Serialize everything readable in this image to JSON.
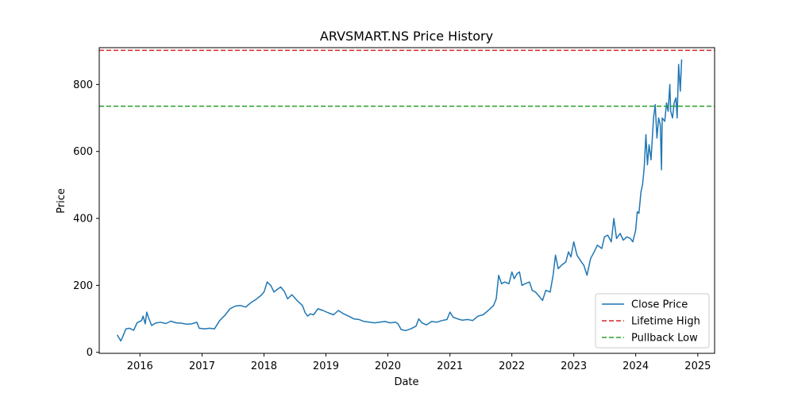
{
  "chart_data": {
    "type": "line",
    "title": "ARVSMART.NS Price History",
    "xlabel": "Date",
    "ylabel": "Price",
    "xlim": [
      "2015-05-06",
      "2025-04-10"
    ],
    "ylim": [
      -3,
      910
    ],
    "x_ticks": [
      "2016",
      "2017",
      "2018",
      "2019",
      "2020",
      "2021",
      "2022",
      "2023",
      "2024",
      "2025"
    ],
    "y_ticks": [
      0,
      200,
      400,
      600,
      800
    ],
    "grid": false,
    "legend_position": "lower-right",
    "series": [
      {
        "name": "Close Price",
        "color": "#1f77b4",
        "points": [
          [
            "2015-08-20",
            52
          ],
          [
            "2015-09-10",
            34
          ],
          [
            "2015-09-20",
            45
          ],
          [
            "2015-10-10",
            70
          ],
          [
            "2015-11-01",
            72
          ],
          [
            "2015-11-25",
            66
          ],
          [
            "2015-12-15",
            88
          ],
          [
            "2016-01-10",
            95
          ],
          [
            "2016-01-20",
            108
          ],
          [
            "2016-02-01",
            85
          ],
          [
            "2016-02-10",
            120
          ],
          [
            "2016-02-20",
            104
          ],
          [
            "2016-03-10",
            80
          ],
          [
            "2016-04-01",
            87
          ],
          [
            "2016-05-01",
            90
          ],
          [
            "2016-06-01",
            86
          ],
          [
            "2016-07-01",
            93
          ],
          [
            "2016-08-01",
            88
          ],
          [
            "2016-09-01",
            87
          ],
          [
            "2016-10-01",
            84
          ],
          [
            "2016-11-01",
            85
          ],
          [
            "2016-12-01",
            90
          ],
          [
            "2016-12-15",
            72
          ],
          [
            "2017-01-15",
            70
          ],
          [
            "2017-02-15",
            72
          ],
          [
            "2017-03-15",
            70
          ],
          [
            "2017-04-15",
            95
          ],
          [
            "2017-05-15",
            110
          ],
          [
            "2017-06-15",
            130
          ],
          [
            "2017-07-15",
            138
          ],
          [
            "2017-08-15",
            140
          ],
          [
            "2017-09-15",
            135
          ],
          [
            "2017-10-15",
            148
          ],
          [
            "2017-11-15",
            158
          ],
          [
            "2017-12-15",
            170
          ],
          [
            "2018-01-01",
            180
          ],
          [
            "2018-01-20",
            210
          ],
          [
            "2018-02-10",
            200
          ],
          [
            "2018-03-01",
            180
          ],
          [
            "2018-03-20",
            188
          ],
          [
            "2018-04-10",
            195
          ],
          [
            "2018-05-01",
            182
          ],
          [
            "2018-05-20",
            160
          ],
          [
            "2018-06-15",
            172
          ],
          [
            "2018-07-15",
            155
          ],
          [
            "2018-08-15",
            140
          ],
          [
            "2018-09-01",
            118
          ],
          [
            "2018-09-15",
            108
          ],
          [
            "2018-10-01",
            115
          ],
          [
            "2018-10-20",
            112
          ],
          [
            "2018-11-15",
            130
          ],
          [
            "2018-12-15",
            125
          ],
          [
            "2019-01-15",
            118
          ],
          [
            "2019-02-15",
            112
          ],
          [
            "2019-03-15",
            125
          ],
          [
            "2019-04-15",
            115
          ],
          [
            "2019-05-15",
            108
          ],
          [
            "2019-06-15",
            100
          ],
          [
            "2019-07-15",
            98
          ],
          [
            "2019-08-15",
            92
          ],
          [
            "2019-09-15",
            90
          ],
          [
            "2019-10-15",
            88
          ],
          [
            "2019-11-15",
            90
          ],
          [
            "2019-12-15",
            92
          ],
          [
            "2020-01-15",
            88
          ],
          [
            "2020-02-15",
            90
          ],
          [
            "2020-03-01",
            85
          ],
          [
            "2020-03-20",
            68
          ],
          [
            "2020-04-15",
            65
          ],
          [
            "2020-05-15",
            70
          ],
          [
            "2020-06-15",
            78
          ],
          [
            "2020-07-01",
            100
          ],
          [
            "2020-07-20",
            88
          ],
          [
            "2020-08-15",
            82
          ],
          [
            "2020-09-15",
            92
          ],
          [
            "2020-10-15",
            90
          ],
          [
            "2020-11-15",
            95
          ],
          [
            "2020-12-15",
            98
          ],
          [
            "2021-01-01",
            120
          ],
          [
            "2021-01-20",
            105
          ],
          [
            "2021-02-15",
            100
          ],
          [
            "2021-03-15",
            96
          ],
          [
            "2021-04-15",
            98
          ],
          [
            "2021-05-15",
            95
          ],
          [
            "2021-06-15",
            108
          ],
          [
            "2021-07-15",
            112
          ],
          [
            "2021-08-15",
            125
          ],
          [
            "2021-09-15",
            140
          ],
          [
            "2021-10-01",
            160
          ],
          [
            "2021-10-15",
            230
          ],
          [
            "2021-11-01",
            205
          ],
          [
            "2021-11-20",
            210
          ],
          [
            "2021-12-15",
            205
          ],
          [
            "2022-01-01",
            240
          ],
          [
            "2022-01-15",
            220
          ],
          [
            "2022-02-01",
            235
          ],
          [
            "2022-02-15",
            240
          ],
          [
            "2022-03-01",
            200
          ],
          [
            "2022-03-20",
            205
          ],
          [
            "2022-04-15",
            210
          ],
          [
            "2022-05-01",
            185
          ],
          [
            "2022-05-20",
            180
          ],
          [
            "2022-06-15",
            165
          ],
          [
            "2022-07-01",
            155
          ],
          [
            "2022-07-20",
            185
          ],
          [
            "2022-08-15",
            180
          ],
          [
            "2022-09-01",
            230
          ],
          [
            "2022-09-15",
            290
          ],
          [
            "2022-10-01",
            250
          ],
          [
            "2022-10-20",
            260
          ],
          [
            "2022-11-15",
            270
          ],
          [
            "2022-12-01",
            300
          ],
          [
            "2022-12-15",
            285
          ],
          [
            "2023-01-01",
            330
          ],
          [
            "2023-01-20",
            290
          ],
          [
            "2023-02-15",
            270
          ],
          [
            "2023-03-01",
            260
          ],
          [
            "2023-03-20",
            230
          ],
          [
            "2023-04-10",
            280
          ],
          [
            "2023-05-01",
            300
          ],
          [
            "2023-05-20",
            320
          ],
          [
            "2023-06-15",
            310
          ],
          [
            "2023-07-01",
            345
          ],
          [
            "2023-07-20",
            350
          ],
          [
            "2023-08-10",
            330
          ],
          [
            "2023-08-25",
            400
          ],
          [
            "2023-09-10",
            340
          ],
          [
            "2023-10-01",
            355
          ],
          [
            "2023-10-20",
            335
          ],
          [
            "2023-11-10",
            345
          ],
          [
            "2023-12-01",
            340
          ],
          [
            "2023-12-15",
            330
          ],
          [
            "2024-01-01",
            365
          ],
          [
            "2024-01-10",
            420
          ],
          [
            "2024-01-20",
            415
          ],
          [
            "2024-02-01",
            480
          ],
          [
            "2024-02-10",
            500
          ],
          [
            "2024-02-20",
            550
          ],
          [
            "2024-03-01",
            650
          ],
          [
            "2024-03-10",
            560
          ],
          [
            "2024-03-20",
            620
          ],
          [
            "2024-03-31",
            575
          ],
          [
            "2024-04-15",
            700
          ],
          [
            "2024-04-25",
            740
          ],
          [
            "2024-05-05",
            640
          ],
          [
            "2024-05-15",
            700
          ],
          [
            "2024-05-25",
            680
          ],
          [
            "2024-06-01",
            545
          ],
          [
            "2024-06-05",
            700
          ],
          [
            "2024-06-20",
            690
          ],
          [
            "2024-07-01",
            745
          ],
          [
            "2024-07-10",
            720
          ],
          [
            "2024-07-20",
            800
          ],
          [
            "2024-07-25",
            720
          ],
          [
            "2024-08-05",
            700
          ],
          [
            "2024-08-15",
            745
          ],
          [
            "2024-08-25",
            760
          ],
          [
            "2024-09-01",
            700
          ],
          [
            "2024-09-10",
            860
          ],
          [
            "2024-09-20",
            780
          ],
          [
            "2024-09-28",
            875
          ]
        ]
      },
      {
        "name": "Lifetime High",
        "type": "hline",
        "value": 902,
        "style": "dashed",
        "color": "#d62728"
      },
      {
        "name": "Pullback Low",
        "type": "hline",
        "value": 735,
        "style": "dashed",
        "color": "#2ca02c"
      }
    ]
  }
}
